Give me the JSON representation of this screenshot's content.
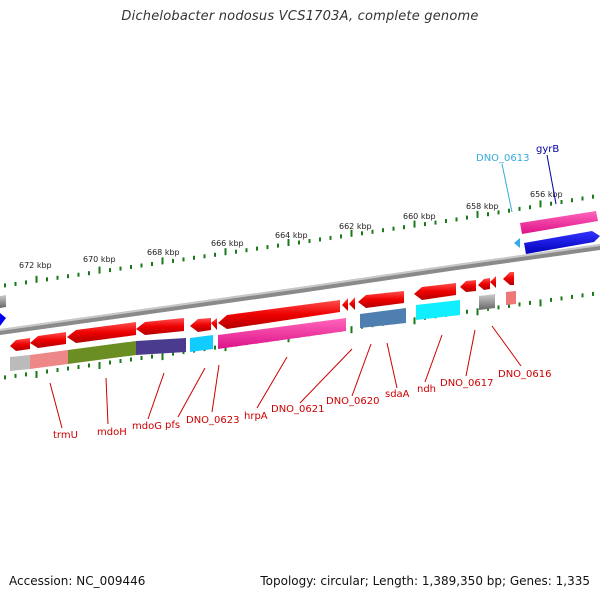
{
  "title": "Dichelobacter nodosus VCS1703A, complete genome",
  "accession": "Accession: NC_009446",
  "summary": "Topology: circular; Length: 1,389,350 bp; Genes: 1,335",
  "colors": {
    "gene_label": "#cc0000",
    "gene_label_alt": "#33aadd",
    "gene_label_forward": "#0000aa",
    "tick": "#1a7a1a",
    "backbone": "#888888"
  },
  "tick_labels": [
    "672 kbp",
    "670 kbp",
    "668 kbp",
    "666 kbp",
    "664 kbp",
    "662 kbp",
    "660 kbp",
    "658 kbp",
    "656 kbp"
  ],
  "genes_above": [
    "DNO_0613",
    "gyrB"
  ],
  "genes_below": [
    "trmU",
    "mdoH",
    "mdoG",
    "pfs",
    "DNO_0623",
    "hrpA",
    "DNO_0621",
    "DNO_0620",
    "sdaA",
    "ndh",
    "DNO_0617",
    "DNO_0616"
  ]
}
